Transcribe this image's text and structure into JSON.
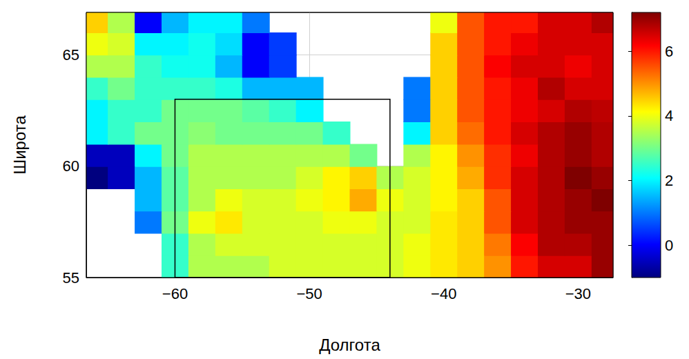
{
  "chart_data": {
    "type": "heatmap",
    "x_label": "Долгота",
    "y_label": "Широта",
    "xlim": [
      -66.6,
      -27.4
    ],
    "ylim": [
      55,
      66.9
    ],
    "xticks": [
      {
        "value": -60,
        "label": "−60"
      },
      {
        "value": -50,
        "label": "−50"
      },
      {
        "value": -40,
        "label": "−40"
      },
      {
        "value": -30,
        "label": "−30"
      }
    ],
    "yticks": [
      55,
      60,
      65
    ],
    "grid": true,
    "lon": [
      -66,
      -64,
      -62,
      -60,
      -58,
      -56,
      -54,
      -52,
      -50,
      -48,
      -46,
      -44,
      -42,
      -40,
      -38,
      -36,
      -34,
      -32,
      -30,
      -28
    ],
    "lat": [
      55.5,
      56.5,
      57.5,
      58.5,
      59.5,
      60.5,
      61.5,
      62.5,
      63.5,
      64.5,
      65.5,
      66.5
    ],
    "values": [
      [
        null,
        null,
        null,
        2.5,
        3.5,
        3.5,
        3.5,
        3.8,
        3.8,
        3.8,
        3.8,
        3.8,
        4,
        4.3,
        4.5,
        5,
        6,
        6.5,
        6.5,
        7
      ],
      [
        null,
        null,
        null,
        2.5,
        3.5,
        3.8,
        3.8,
        3.8,
        3.8,
        3.8,
        3.8,
        3.8,
        4,
        4.3,
        4.5,
        5.2,
        6.2,
        6.8,
        6.8,
        7
      ],
      [
        null,
        null,
        1,
        3,
        4,
        4.3,
        3.8,
        3.8,
        3.8,
        4,
        4,
        3.8,
        3.8,
        4.3,
        4.5,
        5.5,
        6.5,
        6.8,
        7,
        7
      ],
      [
        null,
        null,
        1.5,
        2.8,
        3.5,
        4,
        3.8,
        3.8,
        4,
        4.2,
        4.8,
        4,
        3.8,
        4.2,
        4.5,
        5.5,
        6.5,
        6.8,
        7,
        7.2
      ],
      [
        -1,
        -0.5,
        1.5,
        2.8,
        3.5,
        3.5,
        3.5,
        3.5,
        3.8,
        4.2,
        4.5,
        3.5,
        3.8,
        4.2,
        4.8,
        5.8,
        6.5,
        6.8,
        7.2,
        7
      ],
      [
        -0.5,
        -0.5,
        2,
        3,
        3.5,
        3.5,
        3.5,
        3.5,
        3.5,
        3.5,
        3,
        null,
        3.5,
        4.2,
        5,
        5.8,
        6.3,
        6.8,
        7,
        6.8
      ],
      [
        2,
        2.5,
        3,
        3,
        3.2,
        3,
        3,
        3,
        3,
        2.5,
        null,
        null,
        2,
        4.5,
        5.3,
        6,
        6.5,
        6.8,
        7,
        6.8
      ],
      [
        2,
        2.5,
        2.5,
        3,
        3,
        3,
        2.8,
        2.5,
        2,
        null,
        null,
        null,
        1,
        4.5,
        5.5,
        6,
        6.3,
        6.5,
        6.8,
        6.7
      ],
      [
        2.5,
        3,
        2.5,
        2.5,
        2.5,
        2.3,
        1.5,
        1.5,
        1.5,
        null,
        null,
        null,
        1,
        4.5,
        5.5,
        6,
        6.3,
        6.8,
        6.5,
        6.5
      ],
      [
        3.5,
        3.5,
        2.5,
        2.2,
        2.2,
        1.5,
        0,
        0.5,
        null,
        null,
        null,
        null,
        null,
        4.5,
        5.5,
        6.2,
        6.5,
        6.5,
        6.3,
        6.5
      ],
      [
        4,
        3.8,
        2,
        2,
        2.2,
        1.8,
        0,
        0.5,
        null,
        null,
        null,
        null,
        null,
        4.5,
        5.5,
        6,
        6.3,
        6.5,
        6.5,
        6.5
      ],
      [
        4.5,
        3.5,
        0,
        1.5,
        2,
        2,
        1,
        null,
        null,
        null,
        null,
        null,
        null,
        4,
        5.5,
        6,
        6,
        6.5,
        6.5,
        6.8
      ]
    ],
    "box": {
      "lon": [
        -60,
        -44
      ],
      "lat": [
        55,
        63
      ]
    },
    "colorbar": {
      "range": [
        -1,
        7.2
      ],
      "ticks": [
        0,
        2,
        4,
        6
      ],
      "colors": [
        "#00007f",
        "#0000ff",
        "#007fff",
        "#00ffff",
        "#7fff7f",
        "#ffff00",
        "#ff7f00",
        "#ff0000",
        "#7f0000"
      ]
    }
  }
}
